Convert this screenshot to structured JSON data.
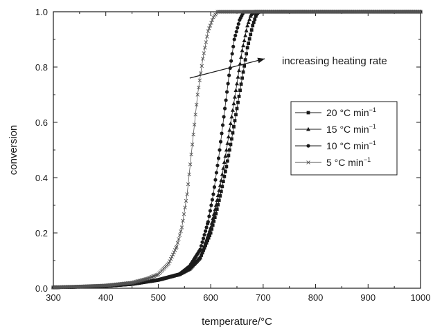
{
  "chart_data": {
    "type": "scatter",
    "title": "",
    "xlabel": "temperature/°C",
    "ylabel": "conversion",
    "xlim": [
      300,
      1000
    ],
    "ylim": [
      0.0,
      1.0
    ],
    "x_ticks": [
      "300",
      "400",
      "500",
      "600",
      "700",
      "800",
      "900",
      "1000"
    ],
    "y_ticks": [
      "0.0",
      "0.2",
      "0.4",
      "0.6",
      "0.8",
      "1.0"
    ],
    "grid": false,
    "legend_position": "center-right",
    "annotation": {
      "text": "increasing heating rate",
      "arrow": {
        "from": [
          560,
          0.76
        ],
        "to": [
          703,
          0.83
        ]
      }
    },
    "series": [
      {
        "name": "20 °C min⁻¹",
        "label_main": "20 °C min",
        "label_sup": "−1",
        "marker": "square",
        "color": "#1a1a1a",
        "points": [
          [
            300,
            0.003
          ],
          [
            350,
            0.005
          ],
          [
            400,
            0.008
          ],
          [
            450,
            0.015
          ],
          [
            500,
            0.03
          ],
          [
            540,
            0.05
          ],
          [
            560,
            0.07
          ],
          [
            580,
            0.11
          ],
          [
            600,
            0.2
          ],
          [
            610,
            0.27
          ],
          [
            620,
            0.35
          ],
          [
            630,
            0.44
          ],
          [
            640,
            0.54
          ],
          [
            650,
            0.65
          ],
          [
            660,
            0.76
          ],
          [
            670,
            0.87
          ],
          [
            680,
            0.95
          ],
          [
            687,
            0.99
          ],
          [
            692,
            1.0
          ],
          [
            1000,
            1.0
          ]
        ]
      },
      {
        "name": "15 °C min⁻¹",
        "label_main": "15 °C min",
        "label_sup": "−1",
        "marker": "triangle",
        "color": "#1a1a1a",
        "points": [
          [
            300,
            0.003
          ],
          [
            350,
            0.005
          ],
          [
            400,
            0.008
          ],
          [
            450,
            0.015
          ],
          [
            500,
            0.03
          ],
          [
            540,
            0.05
          ],
          [
            560,
            0.07
          ],
          [
            580,
            0.11
          ],
          [
            600,
            0.22
          ],
          [
            610,
            0.3
          ],
          [
            620,
            0.39
          ],
          [
            630,
            0.5
          ],
          [
            640,
            0.62
          ],
          [
            650,
            0.74
          ],
          [
            660,
            0.86
          ],
          [
            670,
            0.95
          ],
          [
            677,
            0.99
          ],
          [
            683,
            1.0
          ],
          [
            1000,
            1.0
          ]
        ]
      },
      {
        "name": "10 °C min⁻¹",
        "label_main": "10 °C min",
        "label_sup": "−1",
        "marker": "circle",
        "color": "#1a1a1a",
        "points": [
          [
            300,
            0.003
          ],
          [
            350,
            0.005
          ],
          [
            400,
            0.008
          ],
          [
            450,
            0.015
          ],
          [
            500,
            0.03
          ],
          [
            540,
            0.05
          ],
          [
            560,
            0.08
          ],
          [
            580,
            0.14
          ],
          [
            595,
            0.24
          ],
          [
            605,
            0.34
          ],
          [
            615,
            0.47
          ],
          [
            625,
            0.62
          ],
          [
            635,
            0.77
          ],
          [
            645,
            0.9
          ],
          [
            655,
            0.97
          ],
          [
            663,
            1.0
          ],
          [
            1000,
            1.0
          ]
        ]
      },
      {
        "name": "5 °C min⁻¹",
        "label_main": "5 °C min",
        "label_sup": "−1",
        "marker": "x",
        "color": "#555555",
        "points": [
          [
            300,
            0.003
          ],
          [
            350,
            0.006
          ],
          [
            400,
            0.01
          ],
          [
            450,
            0.02
          ],
          [
            480,
            0.035
          ],
          [
            500,
            0.05
          ],
          [
            520,
            0.09
          ],
          [
            535,
            0.15
          ],
          [
            545,
            0.22
          ],
          [
            555,
            0.34
          ],
          [
            565,
            0.52
          ],
          [
            575,
            0.7
          ],
          [
            585,
            0.83
          ],
          [
            595,
            0.93
          ],
          [
            605,
            0.98
          ],
          [
            613,
            1.0
          ],
          [
            1000,
            1.0
          ]
        ]
      }
    ]
  }
}
